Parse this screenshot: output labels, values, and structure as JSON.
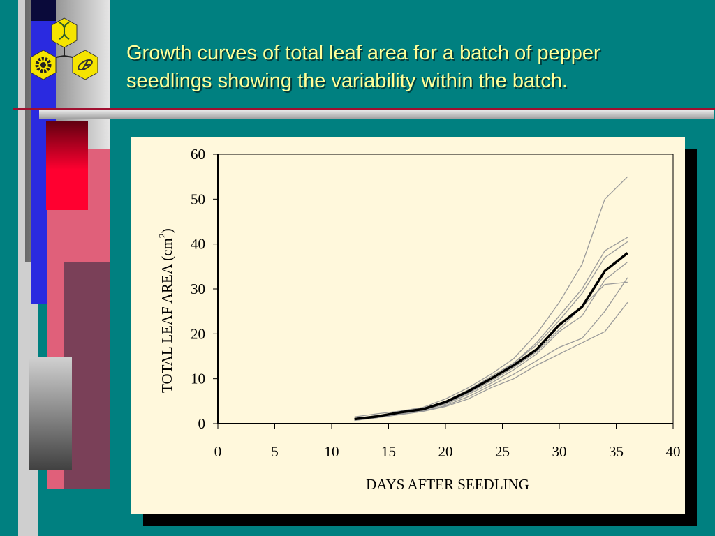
{
  "slide": {
    "title_line1": "Growth curves of total leaf area for a batch of pepper",
    "title_line2": "seedlings showing the variability within the batch.",
    "logo_icon": "hexagon-logo-icon",
    "colors": {
      "background": "#008080",
      "title_text": "#ffff99",
      "chart_bg": "#fff8dc",
      "logo_yellow": "#f5e400"
    }
  },
  "chart_data": {
    "type": "line",
    "title": "",
    "xlabel": "DAYS AFTER SEEDLING",
    "ylabel": "TOTAL LEAF AREA (cm",
    "ylabel_superscript": "2",
    "ylabel_close": ")",
    "xlim": [
      0,
      40
    ],
    "ylim": [
      0,
      60
    ],
    "xticks": [
      0,
      5,
      10,
      15,
      20,
      25,
      30,
      35,
      40
    ],
    "yticks": [
      0,
      10,
      20,
      30,
      40,
      50,
      60
    ],
    "grid": false,
    "x": [
      12,
      14,
      16,
      18,
      20,
      22,
      24,
      26,
      28,
      30,
      32,
      34,
      36
    ],
    "mean": {
      "values": [
        1.0,
        1.6,
        2.5,
        3.2,
        4.8,
        7.2,
        10.0,
        13.0,
        16.5,
        22.0,
        26.0,
        34.0,
        38.0
      ],
      "color": "#000000"
    },
    "series": [
      {
        "values": [
          1.5,
          2.2,
          2.8,
          3.6,
          5.5,
          8.0,
          11.0,
          14.5,
          20.0,
          27.0,
          35.5,
          50.0,
          55.0
        ]
      },
      {
        "values": [
          1.2,
          1.8,
          2.6,
          3.4,
          5.0,
          7.5,
          10.5,
          13.5,
          18.0,
          24.0,
          30.0,
          38.5,
          41.5
        ]
      },
      {
        "values": [
          1.1,
          1.7,
          2.5,
          3.2,
          4.6,
          7.0,
          10.0,
          13.5,
          17.5,
          23.0,
          29.0,
          37.0,
          40.5
        ]
      },
      {
        "values": [
          0.9,
          1.5,
          2.3,
          3.0,
          4.5,
          6.8,
          9.5,
          12.5,
          16.0,
          21.0,
          26.0,
          31.0,
          31.5
        ]
      },
      {
        "values": [
          1.0,
          1.5,
          2.3,
          3.0,
          4.3,
          6.5,
          9.0,
          12.0,
          15.5,
          20.5,
          24.0,
          32.0,
          36.0
        ]
      },
      {
        "values": [
          0.8,
          1.4,
          2.2,
          2.8,
          4.0,
          6.0,
          8.5,
          11.0,
          14.0,
          17.0,
          19.0,
          25.0,
          32.5
        ]
      },
      {
        "values": [
          0.7,
          1.3,
          2.0,
          2.7,
          3.8,
          5.5,
          8.0,
          10.0,
          13.0,
          15.5,
          18.0,
          20.5,
          27.0
        ]
      }
    ],
    "series_color": "#9a9a9a"
  }
}
